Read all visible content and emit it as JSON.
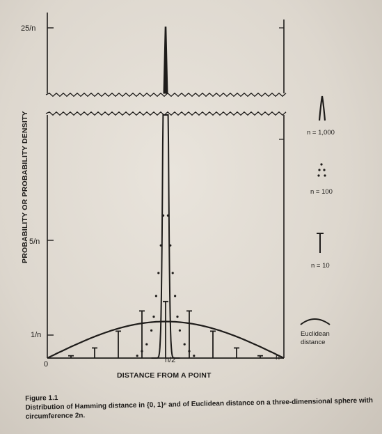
{
  "chart_data": {
    "type": "line",
    "title": "",
    "xlabel": "DISTANCE FROM A POINT",
    "ylabel": "PROBABILITY OR PROBABILITY DENSITY",
    "x_ticks": [
      "0",
      "n/2",
      "n"
    ],
    "y_ticks": [
      "1/n",
      "5/n",
      "25/n"
    ],
    "xlim": [
      0,
      1
    ],
    "axis_break": "between 5/n and 25/n (wavy break lines)",
    "grid": false,
    "legend_placement": "right",
    "series": [
      {
        "name": "n = 1,000",
        "style": "solid narrow peak",
        "x": [
          0.44,
          0.47,
          0.48,
          0.49,
          0.5,
          0.51,
          0.52,
          0.53,
          0.56
        ],
        "values": [
          0.0,
          0.3,
          1.5,
          10.0,
          25.2,
          10.0,
          1.5,
          0.3,
          0.0
        ]
      },
      {
        "name": "n = 100",
        "style": "dots",
        "x": [
          0.38,
          0.4,
          0.42,
          0.44,
          0.45,
          0.46,
          0.47,
          0.48,
          0.49,
          0.51,
          0.52,
          0.53,
          0.54,
          0.55,
          0.56,
          0.58,
          0.6,
          0.62
        ],
        "values": [
          0.1,
          0.3,
          0.6,
          1.2,
          1.8,
          2.7,
          3.7,
          4.9,
          6.2,
          6.2,
          4.9,
          3.7,
          2.7,
          1.8,
          1.2,
          0.6,
          0.3,
          0.1
        ]
      },
      {
        "name": "n = 10",
        "style": "stems",
        "x": [
          0.1,
          0.2,
          0.3,
          0.4,
          0.5,
          0.6,
          0.7,
          0.8,
          0.9
        ],
        "values": [
          0.1,
          0.44,
          1.17,
          2.05,
          2.46,
          2.05,
          1.17,
          0.44,
          0.1
        ]
      },
      {
        "name": "Euclidean distance",
        "style": "solid smooth arc",
        "x": [
          0.0,
          0.1,
          0.2,
          0.3,
          0.4,
          0.5,
          0.6,
          0.7,
          0.8,
          0.9,
          1.0
        ],
        "values": [
          0.0,
          0.49,
          0.94,
          1.29,
          1.51,
          1.59,
          1.51,
          1.29,
          0.94,
          0.49,
          0.0
        ]
      }
    ]
  },
  "legend": {
    "n1000": "n = 1,000",
    "n100": "n = 100",
    "n10": "n = 10",
    "euclid_line1": "Euclidean",
    "euclid_line2": "distance"
  },
  "caption": {
    "figure_label": "Figure 1.1",
    "text": "Distribution of Hamming distance in {0, 1}ⁿ and of Euclidean distance on a three-dimensional sphere with circumference 2n."
  }
}
